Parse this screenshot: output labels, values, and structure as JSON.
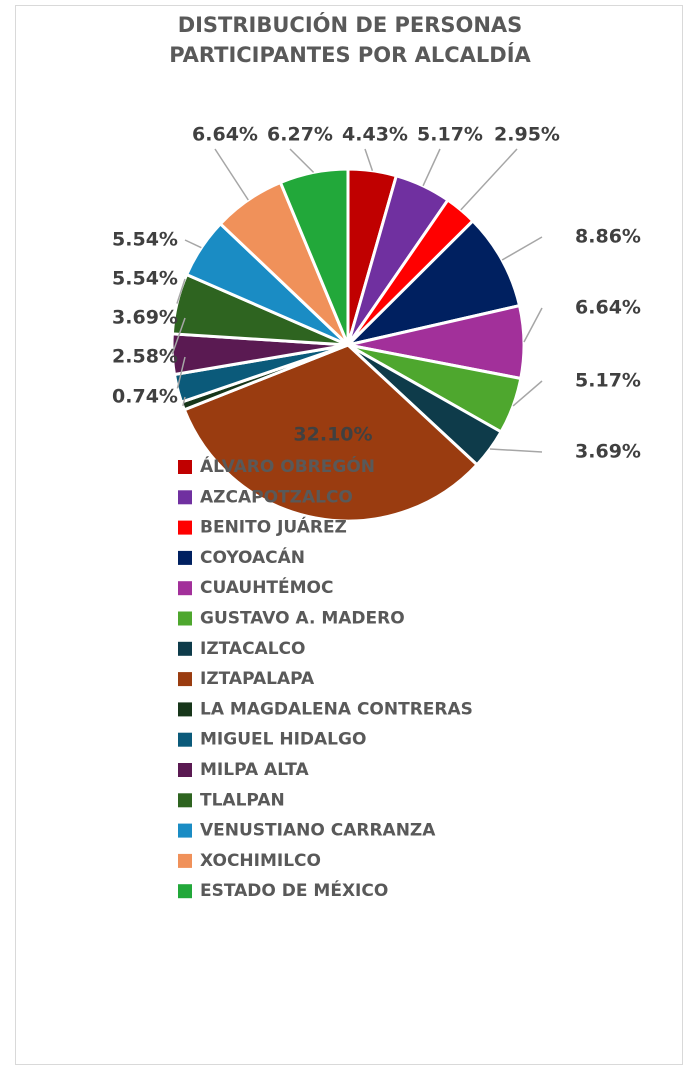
{
  "chart_data": {
    "type": "pie",
    "title": "DISTRIBUCIÓN DE PERSONAS PARTICIPANTES POR ALCALDÍA",
    "categories": [
      "ÁLVARO OBREGÓN",
      "AZCAPOTZALCO",
      "BENITO JUÁREZ",
      "COYOACÁN",
      "CUAUHTÉMOC",
      "GUSTAVO A. MADERO",
      "IZTACALCO",
      "IZTAPALAPA",
      "LA MAGDALENA CONTRERAS",
      "MIGUEL HIDALGO",
      "MILPA ALTA",
      "TLALPAN",
      "VENUSTIANO CARRANZA",
      "XOCHIMILCO",
      "ESTADO DE MÉXICO"
    ],
    "values": [
      4.43,
      5.17,
      2.95,
      8.86,
      6.64,
      5.17,
      3.69,
      32.1,
      0.74,
      2.58,
      3.69,
      5.54,
      5.54,
      6.64,
      6.27
    ],
    "value_labels": [
      "4.43%",
      "5.17%",
      "2.95%",
      "8.86%",
      "6.64%",
      "5.17%",
      "3.69%",
      "32.10%",
      "0.74%",
      "2.58%",
      "3.69%",
      "5.54%",
      "5.54%",
      "6.64%",
      "6.27%"
    ],
    "colors": [
      "#c00000",
      "#7030a0",
      "#ff0000",
      "#002060",
      "#a2309a",
      "#4ea72e",
      "#0e3b4a",
      "#9a3c10",
      "#17361a",
      "#0b5a7a",
      "#5a1a52",
      "#2e6420",
      "#1a8cc4",
      "#f0915a",
      "#22a83a"
    ],
    "legend": "bottom"
  }
}
